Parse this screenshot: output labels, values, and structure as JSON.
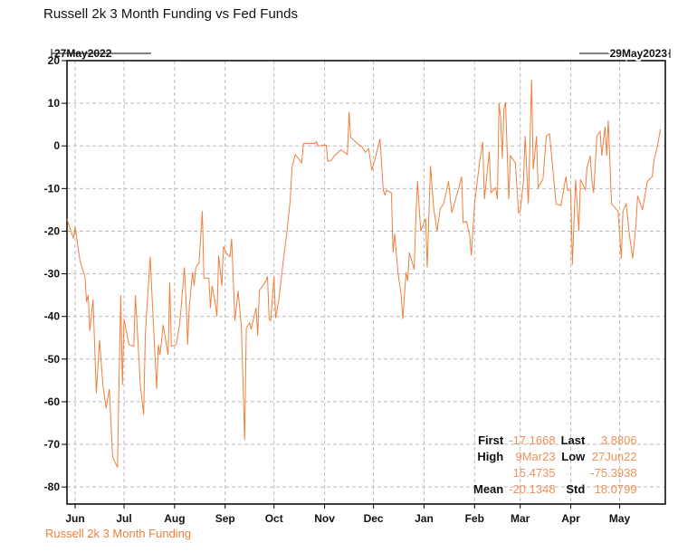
{
  "chart_data": {
    "type": "line",
    "title": "Russell 2k 3 Month Funding vs Fed Funds",
    "start_date": "27May2022",
    "end_date": "29May2023",
    "xlabel": "",
    "ylabel": "",
    "xlim_days": [
      0,
      367
    ],
    "ylim": [
      -84,
      20
    ],
    "yticks": [
      20,
      10,
      0,
      -10,
      -20,
      -30,
      -40,
      -50,
      -60,
      -70,
      -80
    ],
    "xticks": [
      {
        "label": "Jun",
        "day": 5
      },
      {
        "label": "Jul",
        "day": 35
      },
      {
        "label": "Aug",
        "day": 66
      },
      {
        "label": "Sep",
        "day": 97
      },
      {
        "label": "Oct",
        "day": 127
      },
      {
        "label": "Nov",
        "day": 158
      },
      {
        "label": "Dec",
        "day": 188
      },
      {
        "label": "Jan",
        "day": 219
      },
      {
        "label": "Feb",
        "day": 250
      },
      {
        "label": "Mar",
        "day": 278
      },
      {
        "label": "Apr",
        "day": 309
      },
      {
        "label": "May",
        "day": 339
      }
    ],
    "grid": true,
    "legend_position": "bottom-left",
    "color": "#f07f3c",
    "series": [
      {
        "name": "Russell 2k 3 Month Funding",
        "points": [
          [
            0,
            -17.2
          ],
          [
            4,
            -21.7
          ],
          [
            5,
            -19
          ],
          [
            8,
            -27
          ],
          [
            11,
            -30.6
          ],
          [
            12,
            -36.6
          ],
          [
            13,
            -35
          ],
          [
            14,
            -43.4
          ],
          [
            16,
            -36
          ],
          [
            17,
            -47
          ],
          [
            18,
            -58
          ],
          [
            20,
            -45.5
          ],
          [
            22,
            -56
          ],
          [
            24,
            -61.5
          ],
          [
            26,
            -57
          ],
          [
            28,
            -73
          ],
          [
            31,
            -75.4
          ],
          [
            32,
            -54
          ],
          [
            33,
            -35
          ],
          [
            34,
            -56
          ],
          [
            35,
            -40.6
          ],
          [
            38,
            -46.6
          ],
          [
            41,
            -47
          ],
          [
            42,
            -35
          ],
          [
            45,
            -56
          ],
          [
            47,
            -63
          ],
          [
            48,
            -44.5
          ],
          [
            49,
            -38
          ],
          [
            51,
            -26
          ],
          [
            53,
            -42
          ],
          [
            55,
            -57
          ],
          [
            56,
            -46.6
          ],
          [
            57,
            -49
          ],
          [
            59,
            -42
          ],
          [
            62,
            -49
          ],
          [
            63,
            -32
          ],
          [
            64,
            -47
          ],
          [
            67,
            -46.6
          ],
          [
            69,
            -42
          ],
          [
            70,
            -38
          ],
          [
            72,
            -28.5
          ],
          [
            73,
            -36
          ],
          [
            74,
            -46.6
          ],
          [
            75,
            -37.7
          ],
          [
            77,
            -29.6
          ],
          [
            78,
            -32.8
          ],
          [
            79,
            -28.5
          ],
          [
            81,
            -27.4
          ],
          [
            83,
            -15.3
          ],
          [
            84,
            -31
          ],
          [
            87,
            -31
          ],
          [
            88,
            -38
          ],
          [
            89,
            -32.8
          ],
          [
            91,
            -37
          ],
          [
            92,
            -40
          ],
          [
            93,
            -25.7
          ],
          [
            95,
            -32.8
          ],
          [
            96,
            -23.6
          ],
          [
            98,
            -25.3
          ],
          [
            100,
            -26
          ],
          [
            101,
            -21.7
          ],
          [
            103,
            -41
          ],
          [
            105,
            -34
          ],
          [
            107,
            -42.7
          ],
          [
            109,
            -69
          ],
          [
            110,
            -42.7
          ],
          [
            112,
            -41.5
          ],
          [
            113,
            -43
          ],
          [
            116,
            -38
          ],
          [
            117,
            -44.5
          ],
          [
            118,
            -34
          ],
          [
            120,
            -32.8
          ],
          [
            122,
            -31.7
          ],
          [
            123,
            -30.6
          ],
          [
            124,
            -40.6
          ],
          [
            125,
            -41
          ],
          [
            127,
            -30.6
          ],
          [
            128,
            -40.4
          ],
          [
            130,
            -36
          ],
          [
            133,
            -26
          ],
          [
            135,
            -20
          ],
          [
            137,
            -12.5
          ],
          [
            138,
            -5
          ],
          [
            140,
            -2
          ],
          [
            144,
            -4
          ],
          [
            145,
            0.6
          ],
          [
            152,
            0.6
          ],
          [
            153,
            1
          ],
          [
            154,
            0
          ],
          [
            159,
            0.2
          ],
          [
            160,
            -3.6
          ],
          [
            162,
            -3.4
          ],
          [
            164,
            -2.3
          ],
          [
            168,
            -0.9
          ],
          [
            172,
            -2
          ],
          [
            173,
            8
          ],
          [
            174,
            2
          ],
          [
            178,
            0.6
          ],
          [
            181,
            -0.2
          ],
          [
            183,
            -1.5
          ],
          [
            185,
            -0.6
          ],
          [
            187,
            -5.7
          ],
          [
            189,
            -3
          ],
          [
            192,
            1.7
          ],
          [
            194,
            -10.4
          ],
          [
            195,
            -11.5
          ],
          [
            196,
            -10.4
          ],
          [
            199,
            -11
          ],
          [
            200,
            -25
          ],
          [
            201,
            -20.6
          ],
          [
            203,
            -29.6
          ],
          [
            205,
            -35
          ],
          [
            206,
            -40.6
          ],
          [
            208,
            -29.6
          ],
          [
            209,
            -31.7
          ],
          [
            210,
            -25
          ],
          [
            213,
            -29
          ],
          [
            214,
            -17
          ],
          [
            215,
            -8.3
          ],
          [
            217,
            -20
          ],
          [
            220,
            -17
          ],
          [
            221,
            -28.5
          ],
          [
            223,
            -4.7
          ],
          [
            225,
            -14.7
          ],
          [
            227,
            -20
          ],
          [
            229,
            -14.7
          ],
          [
            231,
            -13.6
          ],
          [
            234,
            -8.3
          ],
          [
            236,
            -15.7
          ],
          [
            239,
            -11.5
          ],
          [
            240,
            -10.4
          ],
          [
            242,
            -7.2
          ],
          [
            243,
            -18
          ],
          [
            245,
            -17.7
          ],
          [
            247,
            -21
          ],
          [
            248,
            -25.7
          ],
          [
            250,
            -13.6
          ],
          [
            253,
            -4
          ],
          [
            255,
            0.9
          ],
          [
            256,
            -12.5
          ],
          [
            259,
            -1.3
          ],
          [
            260,
            -11
          ],
          [
            263,
            -9.8
          ],
          [
            264,
            -12.5
          ],
          [
            265,
            10
          ],
          [
            266,
            6.6
          ],
          [
            267,
            -3
          ],
          [
            268,
            8.7
          ],
          [
            269,
            10.2
          ],
          [
            271,
            -12.5
          ],
          [
            272,
            -2.3
          ],
          [
            275,
            -4
          ],
          [
            277,
            -15.7
          ],
          [
            278,
            -15.3
          ],
          [
            280,
            -8.3
          ],
          [
            281,
            2.3
          ],
          [
            283,
            -13.6
          ],
          [
            285,
            15.5
          ],
          [
            286,
            -5.5
          ],
          [
            288,
            2.3
          ],
          [
            289,
            -9.8
          ],
          [
            292,
            -7.7
          ],
          [
            294,
            2.3
          ],
          [
            296,
            2.8
          ],
          [
            300,
            -13.6
          ],
          [
            303,
            -14
          ],
          [
            306,
            -7.2
          ],
          [
            307,
            -10.4
          ],
          [
            309,
            -10.4
          ],
          [
            310,
            -27.9
          ],
          [
            312,
            -7.9
          ],
          [
            314,
            -20
          ],
          [
            315,
            -7.9
          ],
          [
            318,
            -10.4
          ],
          [
            319,
            -5
          ],
          [
            321,
            -2.3
          ],
          [
            322,
            -8.3
          ],
          [
            323,
            -11
          ],
          [
            325,
            2.3
          ],
          [
            327,
            3.4
          ],
          [
            328,
            -2.3
          ],
          [
            330,
            4.5
          ],
          [
            331,
            -2.3
          ],
          [
            332,
            6
          ],
          [
            334,
            -13.6
          ],
          [
            338,
            -15.3
          ],
          [
            340,
            -26.4
          ],
          [
            341,
            -15.3
          ],
          [
            343,
            -13.6
          ],
          [
            345,
            -21
          ],
          [
            347,
            -26.4
          ],
          [
            349,
            -18.5
          ],
          [
            350,
            -11.7
          ],
          [
            353,
            -15
          ],
          [
            356,
            -8.3
          ],
          [
            359,
            -7.2
          ],
          [
            360,
            -3.4
          ],
          [
            362,
            -0.4
          ],
          [
            364,
            3.9
          ]
        ]
      }
    ],
    "stats": {
      "first_label": "First",
      "first": "-17.1668",
      "last_label": "Last",
      "last": "3.8806",
      "high_label": "High",
      "high_date": "9Mar23",
      "high": "15.4735",
      "low_label": "Low",
      "low_date": "27Jun22",
      "low": "-75.3938",
      "mean_label": "Mean",
      "mean": "-20.1348",
      "std_label": "Std",
      "std": "18.0799"
    }
  }
}
